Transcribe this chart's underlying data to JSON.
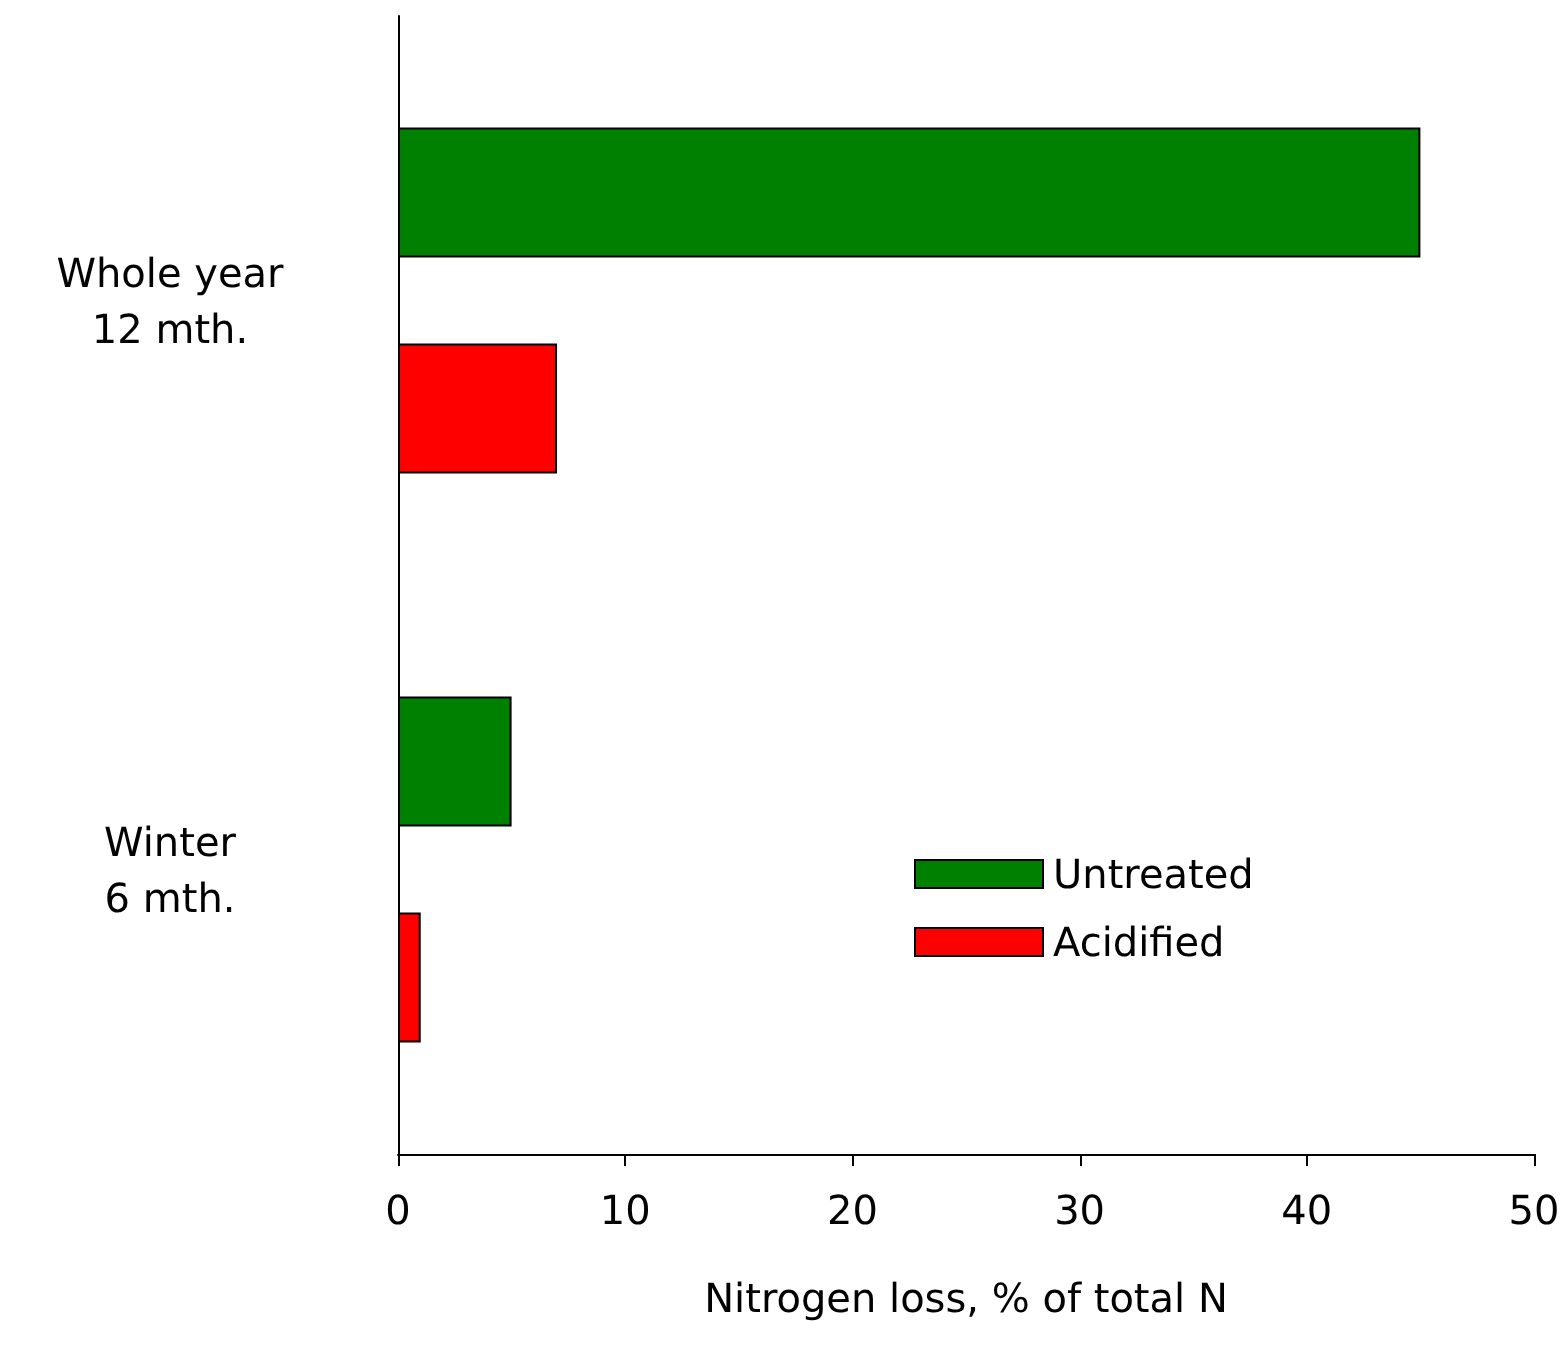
{
  "chart_data": {
    "type": "bar",
    "orientation": "horizontal",
    "xlabel": "Nitrogen loss, % of total N",
    "categories": [
      "Whole year\n12 mth.",
      "Winter\n6 mth."
    ],
    "series": [
      {
        "name": "Untreated",
        "color": "#008000",
        "values": [
          45,
          5
        ]
      },
      {
        "name": "Acidified",
        "color": "#ff0000",
        "values": [
          7,
          1
        ]
      }
    ],
    "xlim": [
      0,
      50
    ],
    "xticks": [
      0,
      10,
      20,
      30,
      40,
      50
    ],
    "grid": false,
    "legend": "bottom right"
  }
}
